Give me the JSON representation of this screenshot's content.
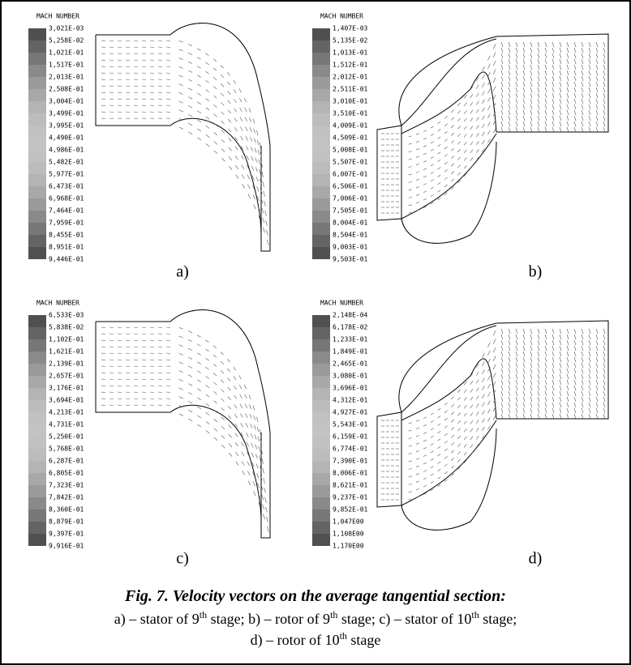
{
  "figure": {
    "panels": [
      {
        "label": "a)",
        "legend": {
          "title": "MACH NUMBER",
          "labels": [
            "3,021E-03",
            "5,258E-02",
            "1,021E-01",
            "1,517E-01",
            "2,013E-01",
            "2,508E-01",
            "3,004E-01",
            "3,499E-01",
            "3,995E-01",
            "4,490E-01",
            "4,986E-01",
            "5,482E-01",
            "5,977E-01",
            "6,473E-01",
            "6,968E-01",
            "7,464E-01",
            "7,959E-01",
            "8,455E-01",
            "8,951E-01",
            "9,446E-01"
          ]
        }
      },
      {
        "label": "b)",
        "legend": {
          "title": "MACH NUMBER",
          "labels": [
            "1,407E-03",
            "5,135E-02",
            "1,013E-01",
            "1,512E-01",
            "2,012E-01",
            "2,511E-01",
            "3,010E-01",
            "3,510E-01",
            "4,009E-01",
            "4,509E-01",
            "5,008E-01",
            "5,507E-01",
            "6,007E-01",
            "6,506E-01",
            "7,006E-01",
            "7,505E-01",
            "8,004E-01",
            "8,504E-01",
            "9,003E-01",
            "9,503E-01"
          ]
        }
      },
      {
        "label": "c)",
        "legend": {
          "title": "MACH NUMBER",
          "labels": [
            "6,533E-03",
            "5,838E-02",
            "1,102E-01",
            "1,621E-01",
            "2,139E-01",
            "2,657E-01",
            "3,176E-01",
            "3,694E-01",
            "4,213E-01",
            "4,731E-01",
            "5,250E-01",
            "5,768E-01",
            "6,287E-01",
            "6,805E-01",
            "7,323E-01",
            "7,842E-01",
            "8,360E-01",
            "8,879E-01",
            "9,397E-01",
            "9,916E-01"
          ]
        }
      },
      {
        "label": "d)",
        "legend": {
          "title": "MACH NUMBER",
          "labels": [
            "2,148E-04",
            "6,178E-02",
            "1,233E-01",
            "1,849E-01",
            "2,465E-01",
            "3,080E-01",
            "3,696E-01",
            "4,312E-01",
            "4,927E-01",
            "5,543E-01",
            "6,159E-01",
            "6,774E-01",
            "7,390E-01",
            "8,006E-01",
            "8,621E-01",
            "9,237E-01",
            "9,852E-01",
            "1,047E00",
            "1,108E00",
            "1,170E00"
          ]
        }
      }
    ],
    "caption": {
      "title": "Fig. 7. Velocity vectors on the average tangential section:",
      "lines": [
        [
          {
            "text": "a) – stator of 9"
          },
          {
            "sup": "th"
          },
          {
            "text": " stage; b) – rotor of 9"
          },
          {
            "sup": "th"
          },
          {
            "text": " stage; c) – stator of 10"
          },
          {
            "sup": "th"
          },
          {
            "text": " stage;"
          }
        ],
        [
          {
            "text": "d) – rotor of 10"
          },
          {
            "sup": "th"
          },
          {
            "text": " stage"
          }
        ]
      ]
    }
  }
}
